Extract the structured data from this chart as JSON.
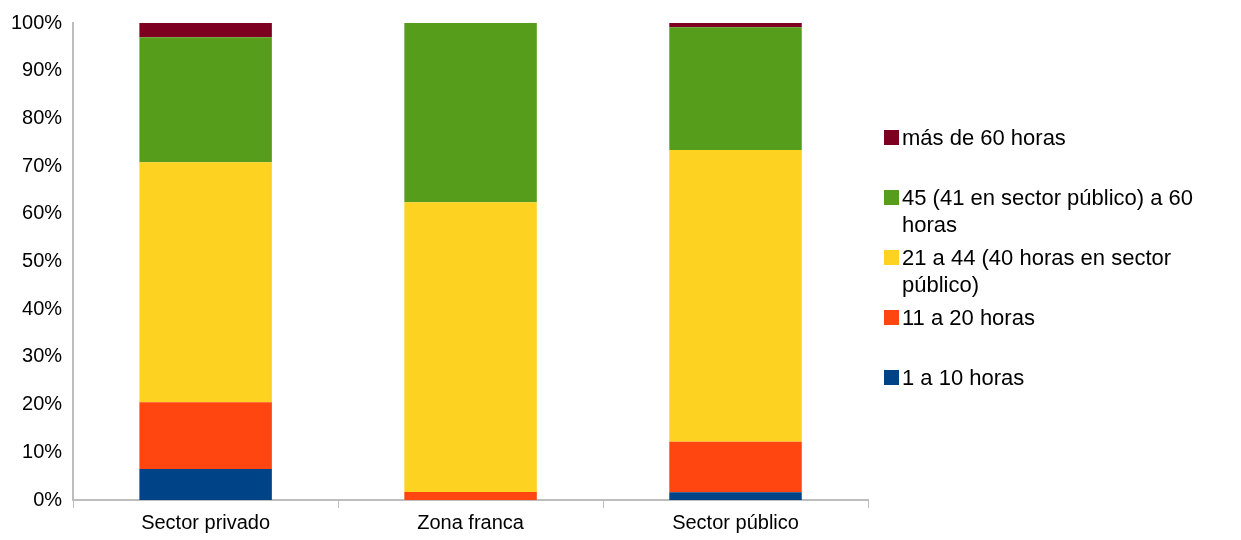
{
  "chart_data": {
    "type": "bar",
    "stacked": true,
    "categories": [
      "Sector privado",
      "Zona franca",
      "Sector público"
    ],
    "series": [
      {
        "name": "1 a 10 horas",
        "color": "#004386",
        "values": [
          6.5,
          0,
          1.6
        ]
      },
      {
        "name": "11 a 20  horas",
        "color": "#ff4610",
        "values": [
          14.0,
          1.7,
          10.6
        ]
      },
      {
        "name": "21 a 44  (40 horas en sector público)",
        "color": "#fdd220",
        "values": [
          50.3,
          60.7,
          61.2
        ]
      },
      {
        "name": "45 (41 en sector público) a 60 horas",
        "color": "#579d1c",
        "values": [
          26.2,
          37.6,
          25.7
        ]
      },
      {
        "name": "más de 60 horas",
        "color": "#7e0021",
        "values": [
          3.0,
          0,
          0.9
        ]
      }
    ],
    "ylim": [
      0,
      100
    ],
    "yticks": [
      {
        "value": 0,
        "label": "0%"
      },
      {
        "value": 10,
        "label": "10%"
      },
      {
        "value": 20,
        "label": "20%"
      },
      {
        "value": 30,
        "label": "30%"
      },
      {
        "value": 40,
        "label": "40%"
      },
      {
        "value": 50,
        "label": "50%"
      },
      {
        "value": 60,
        "label": "60%"
      },
      {
        "value": 70,
        "label": "70%"
      },
      {
        "value": 80,
        "label": "80%"
      },
      {
        "value": 90,
        "label": "90%"
      },
      {
        "value": 100,
        "label": "100%"
      }
    ],
    "grid": false,
    "legend": "right"
  }
}
